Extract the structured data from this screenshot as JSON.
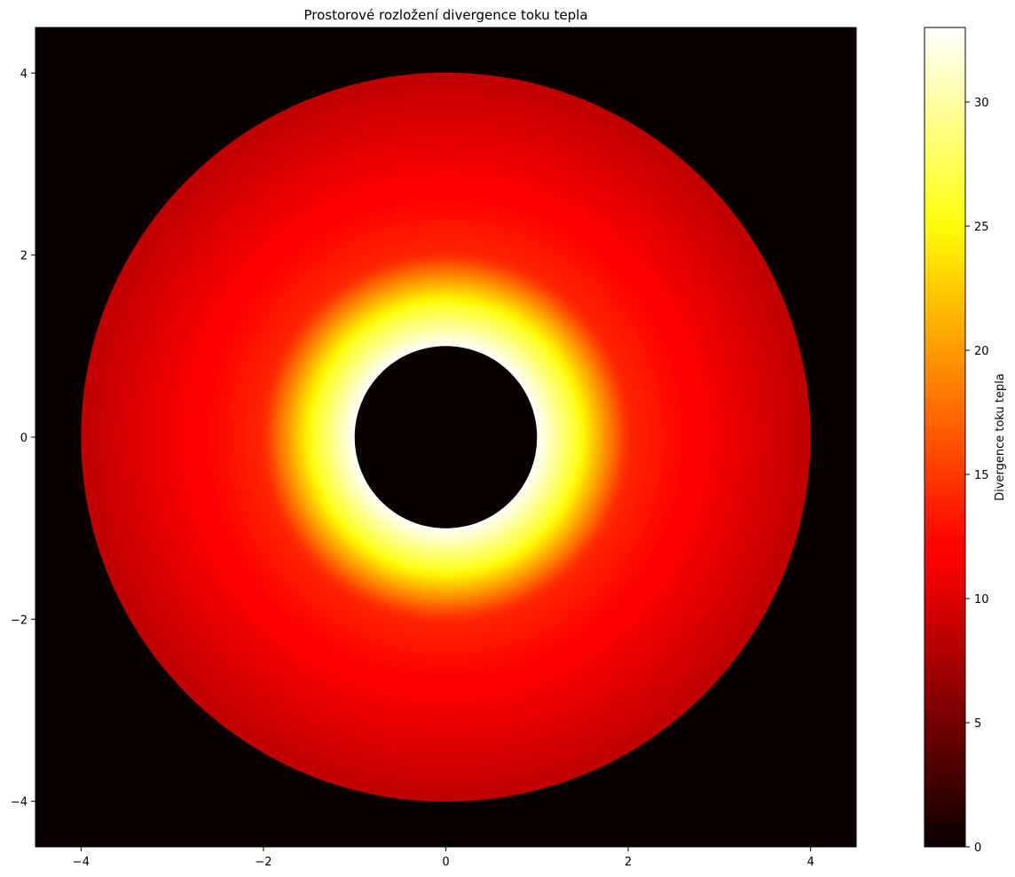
{
  "chart_data": {
    "type": "heatmap",
    "title": "Prostorové rozložení divergence toku tepla",
    "xlabel": "",
    "ylabel": "",
    "xlim": [
      -4.5,
      4.5
    ],
    "ylim": [
      -4.5,
      4.5
    ],
    "x_ticks": [
      -4,
      -2,
      0,
      2,
      4
    ],
    "y_ticks": [
      -4,
      -2,
      0,
      2,
      4
    ],
    "colormap": "hot",
    "colorbar": {
      "label": "Divergence toku tepla",
      "range": [
        0,
        33
      ],
      "ticks": [
        0,
        5,
        10,
        15,
        20,
        25,
        30
      ]
    },
    "field": {
      "description": "annular region between r=1 and r=4; value decreases with radius",
      "inner_radius": 1,
      "outer_radius": 4,
      "outside_value": 0,
      "value_at_inner_radius": 33,
      "value_at_r_1_5": 25,
      "value_at_r_2": 14,
      "value_at_r_3": 11,
      "value_at_outer_radius": 8.5
    },
    "grid": false
  },
  "colors": {
    "background": "#ffffff",
    "field_zero": "#0b0000",
    "hot_stops": [
      "#0b0000",
      "#ff0000",
      "#ffff00",
      "#ffffff"
    ]
  },
  "text": {
    "x_tick_labels": [
      "−4",
      "−2",
      "0",
      "2",
      "4"
    ],
    "y_tick_labels": [
      "−4",
      "−2",
      "0",
      "2",
      "4"
    ],
    "cbar_tick_labels": [
      "0",
      "5",
      "10",
      "15",
      "20",
      "25",
      "30"
    ]
  }
}
